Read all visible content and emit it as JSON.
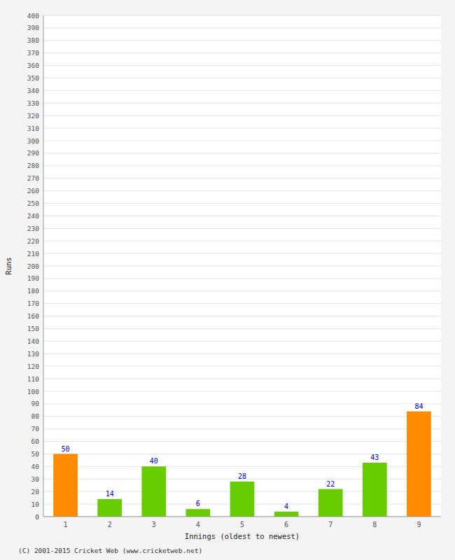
{
  "chart_data": {
    "type": "bar",
    "xlabel": "Innings (oldest to newest)",
    "ylabel": "Runs",
    "categories": [
      "1",
      "2",
      "3",
      "4",
      "5",
      "6",
      "7",
      "8",
      "9"
    ],
    "values": [
      50,
      14,
      40,
      6,
      28,
      4,
      22,
      43,
      84
    ],
    "colors": [
      "#ff8c00",
      "#66cc00",
      "#66cc00",
      "#66cc00",
      "#66cc00",
      "#66cc00",
      "#66cc00",
      "#66cc00",
      "#ff8c00"
    ],
    "ylim": [
      0,
      400
    ],
    "yticks": [
      0,
      10,
      20,
      30,
      40,
      50,
      60,
      70,
      80,
      90,
      100,
      110,
      120,
      130,
      140,
      150,
      160,
      170,
      180,
      190,
      200,
      210,
      220,
      230,
      240,
      250,
      260,
      270,
      280,
      290,
      300,
      310,
      320,
      330,
      340,
      350,
      360,
      370,
      380,
      390,
      400
    ],
    "grid": true,
    "data_labels": true,
    "annotations": [
      "(C) 2001-2015 Cricket Web (www.cricketweb.net)"
    ]
  }
}
